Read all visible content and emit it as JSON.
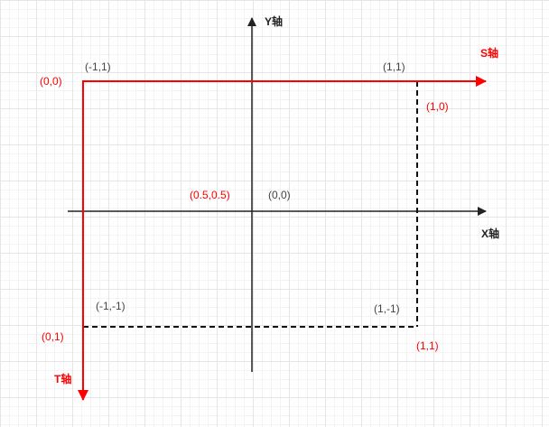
{
  "colors": {
    "red": "#ff0000",
    "black": "#222222",
    "gray": "#444444"
  },
  "axes": {
    "y_axis_label": "Y轴",
    "x_axis_label": "X轴",
    "s_axis_label": "S轴",
    "t_axis_label": "T轴"
  },
  "labels": {
    "st_origin": "(0,0)",
    "xy_top_left": "(-1,1)",
    "xy_top_right": "(1,1)",
    "st_top_right": "(1,0)",
    "st_center": "(0.5,0.5)",
    "xy_origin": "(0,0)",
    "xy_bottom_left": "(-1,-1)",
    "xy_bottom_right": "(1,-1)",
    "st_bottom_left": "(0,1)",
    "st_bottom_right": "(1,1)"
  }
}
